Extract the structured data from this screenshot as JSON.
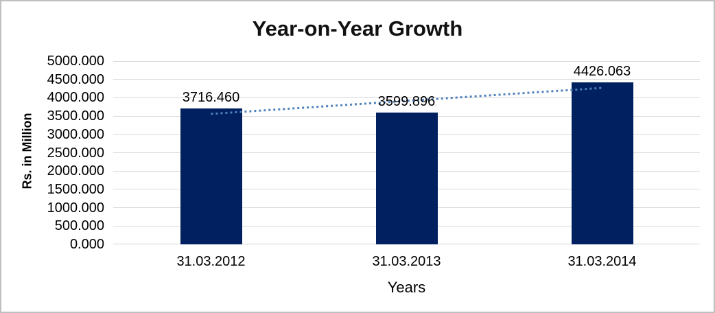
{
  "chart_data": {
    "type": "bar",
    "title": "Year-on-Year Growth",
    "xlabel": "Years",
    "ylabel": "Rs. in Million",
    "categories": [
      "31.03.2012",
      "31.03.2013",
      "31.03.2014"
    ],
    "values": [
      3716.46,
      3599.896,
      4426.063
    ],
    "value_labels": [
      "3716.460",
      "3599.896",
      "4426.063"
    ],
    "ylim": [
      0,
      5000
    ],
    "ytick_step": 500,
    "ytick_labels": [
      "0.000",
      "500.000",
      "1000.000",
      "1500.000",
      "2000.000",
      "2500.000",
      "3000.000",
      "3500.000",
      "4000.000",
      "4500.000",
      "5000.000"
    ],
    "grid": true,
    "legend": false,
    "trendline": {
      "type": "linear",
      "style": "dotted"
    },
    "colors": {
      "bar": "#002060",
      "trendline": "#4F81BD",
      "gridline": "#D9D9D9",
      "axis_line": "#D4D4D4",
      "text": "#000000",
      "border": "#BFBFBF"
    }
  }
}
